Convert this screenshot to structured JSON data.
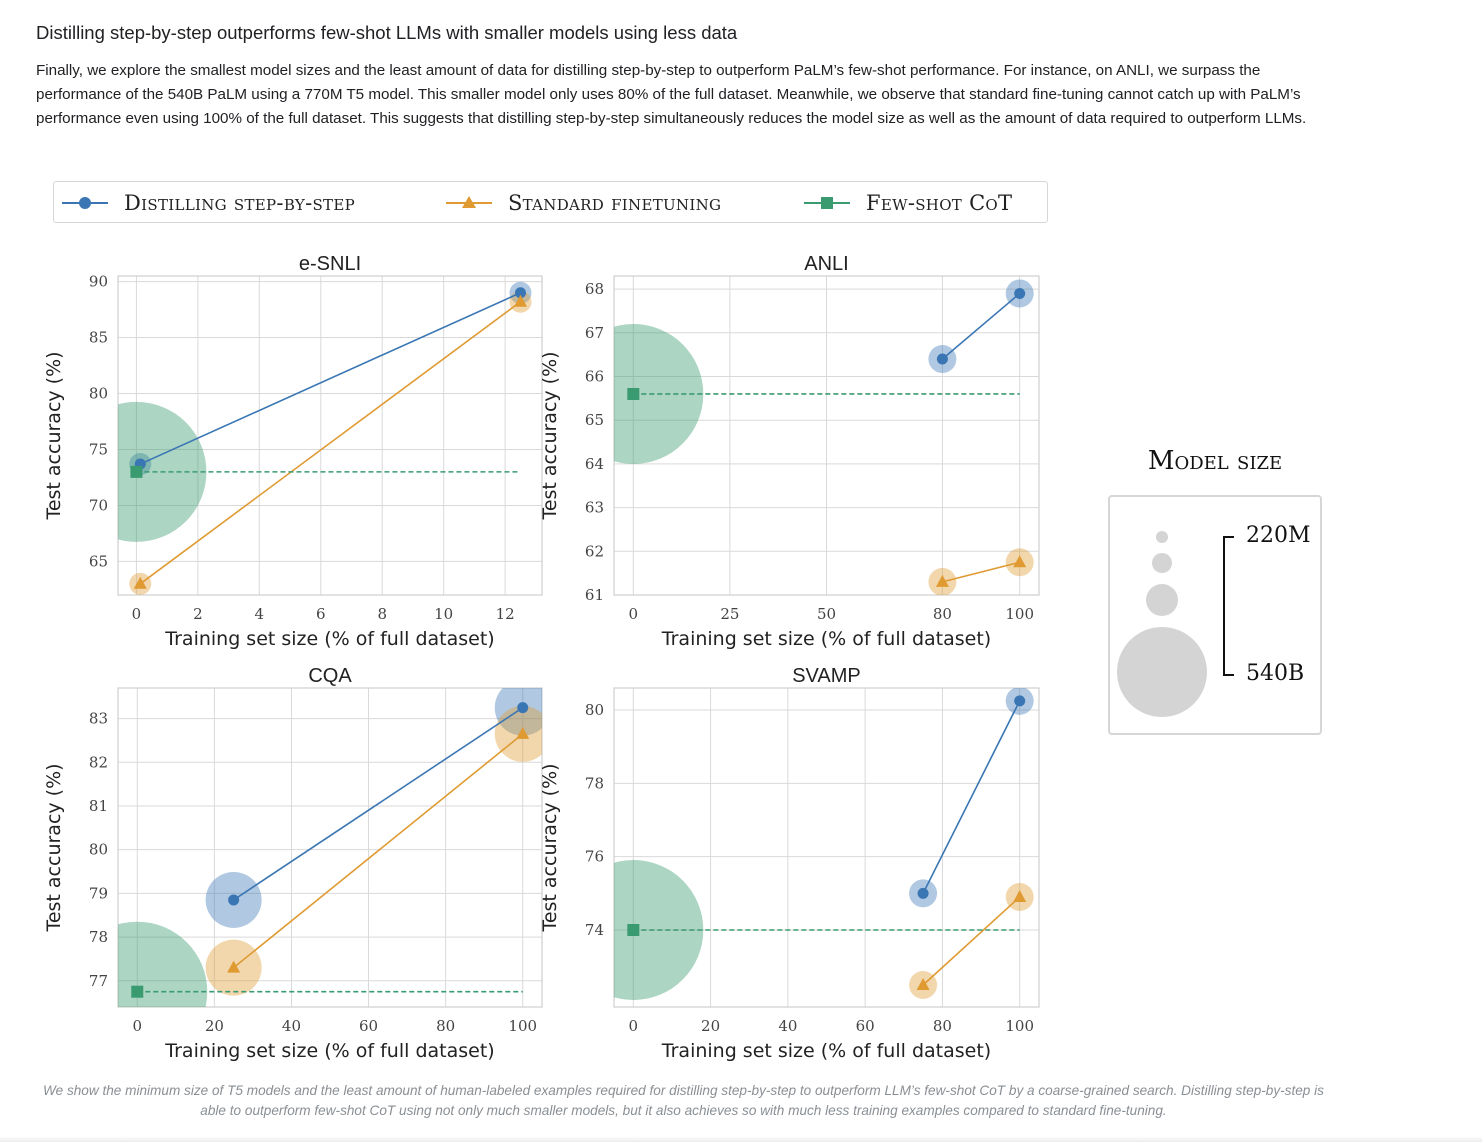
{
  "heading": "Distilling step-by-step outperforms few-shot LLMs with smaller models using less data",
  "paragraph": "Finally, we explore the smallest model sizes and the least amount of data for distilling step-by-step to outperform PaLM’s few-shot performance. For instance, on ANLI, we surpass the performance of the 540B PaLM using a 770M T5 model. This smaller model only uses 80% of the full dataset. Meanwhile, we observe that standard fine-tuning cannot catch up with PaLM’s performance even using 100% of the full dataset. This suggests that distilling step-by-step simultaneously reduces the model size as well as the amount of data required to outperform LLMs.",
  "legend": {
    "distill": "Distilling step-by-step",
    "standard": "Standard finetuning",
    "cot": "Few-shot CoT"
  },
  "colors": {
    "distill": "#3a76b4",
    "standard": "#df9a32",
    "cot": "#3a9a70",
    "bubble_gray": "#d4d4d4"
  },
  "model_size": {
    "title": "Model size",
    "small_label": "220M",
    "large_label": "540B"
  },
  "caption": "We show the minimum size of T5 models and the least amount of human-labeled examples required for distilling step-by-step to outperform LLM’s few-shot CoT by a coarse-grained search. Distilling step-by-step is able to outperform few-shot CoT using not only much smaller models, but it also achieves so with much less training examples compared to standard fine-tuning.",
  "chart_data": [
    {
      "type": "scatter",
      "title": "e-SNLI",
      "xlabel": "Training set size (% of full dataset)",
      "ylabel": "Test accuracy (%)",
      "xscale": "linear",
      "xlim": [
        -0.6,
        13.2
      ],
      "ylim": [
        62,
        90.5
      ],
      "xticks": [
        0,
        2,
        4,
        6,
        8,
        10,
        12
      ],
      "yticks": [
        65,
        70,
        75,
        80,
        85,
        90
      ],
      "grid": true,
      "series": [
        {
          "name": "Distilling step-by-step",
          "marker": "circle",
          "x": [
            0.125,
            12.5
          ],
          "y": [
            73.7,
            89.0
          ],
          "model_size": [
            "220M",
            "220M"
          ]
        },
        {
          "name": "Standard finetuning",
          "marker": "triangle",
          "x": [
            0.125,
            12.5
          ],
          "y": [
            63.0,
            88.2
          ],
          "model_size": [
            "220M",
            "220M"
          ]
        },
        {
          "name": "Few-shot CoT",
          "marker": "square",
          "x": [
            0.0,
            12.5
          ],
          "y": [
            73.0,
            73.0
          ],
          "model_size": [
            "540B"
          ]
        }
      ]
    },
    {
      "type": "scatter",
      "title": "ANLI",
      "xlabel": "Training set size (% of full dataset)",
      "ylabel": "Test accuracy (%)",
      "xscale": "nonlinear",
      "xlim": [
        -5,
        105
      ],
      "ylim": [
        61,
        68.3
      ],
      "xticks": [
        0,
        25,
        50,
        80,
        100
      ],
      "yticks": [
        61,
        62,
        63,
        64,
        65,
        66,
        67,
        68
      ],
      "grid": true,
      "series": [
        {
          "name": "Distilling step-by-step",
          "marker": "circle",
          "x": [
            80,
            100
          ],
          "y": [
            66.4,
            67.9
          ],
          "model_size": [
            "770M",
            "770M"
          ]
        },
        {
          "name": "Standard finetuning",
          "marker": "triangle",
          "x": [
            80,
            100
          ],
          "y": [
            61.3,
            61.75
          ],
          "model_size": [
            "770M",
            "770M"
          ]
        },
        {
          "name": "Few-shot CoT",
          "marker": "square",
          "x": [
            0,
            100
          ],
          "y": [
            65.6,
            65.6
          ],
          "model_size": [
            "540B"
          ]
        }
      ]
    },
    {
      "type": "scatter",
      "title": "CQA",
      "xlabel": "Training set size (% of full dataset)",
      "ylabel": "Test accuracy (%)",
      "xscale": "linear",
      "xlim": [
        -5,
        105
      ],
      "ylim": [
        76.4,
        83.7
      ],
      "xticks": [
        0,
        20,
        40,
        60,
        80,
        100
      ],
      "yticks": [
        77,
        78,
        79,
        80,
        81,
        82,
        83
      ],
      "grid": true,
      "series": [
        {
          "name": "Distilling step-by-step",
          "marker": "circle",
          "x": [
            25,
            100
          ],
          "y": [
            78.85,
            83.25
          ],
          "model_size": [
            "11B",
            "11B"
          ]
        },
        {
          "name": "Standard finetuning",
          "marker": "triangle",
          "x": [
            25,
            100
          ],
          "y": [
            77.3,
            82.65
          ],
          "model_size": [
            "11B",
            "11B"
          ]
        },
        {
          "name": "Few-shot CoT",
          "marker": "square",
          "x": [
            0,
            100
          ],
          "y": [
            76.75,
            76.75
          ],
          "model_size": [
            "540B"
          ]
        }
      ]
    },
    {
      "type": "scatter",
      "title": "SVAMP",
      "xlabel": "Training set size (% of full dataset)",
      "ylabel": "Test accuracy (%)",
      "xscale": "linear",
      "xlim": [
        -5,
        105
      ],
      "ylim": [
        71.9,
        80.6
      ],
      "xticks": [
        0,
        20,
        40,
        60,
        80,
        100
      ],
      "yticks": [
        74,
        76,
        78,
        80
      ],
      "grid": true,
      "series": [
        {
          "name": "Distilling step-by-step",
          "marker": "circle",
          "x": [
            75,
            100
          ],
          "y": [
            75.0,
            80.25
          ],
          "model_size": [
            "770M",
            "770M"
          ]
        },
        {
          "name": "Standard finetuning",
          "marker": "triangle",
          "x": [
            75,
            100
          ],
          "y": [
            72.5,
            74.9
          ],
          "model_size": [
            "770M",
            "770M"
          ]
        },
        {
          "name": "Few-shot CoT",
          "marker": "square",
          "x": [
            0,
            100
          ],
          "y": [
            74.0,
            74.0
          ],
          "model_size": [
            "540B"
          ]
        }
      ]
    }
  ]
}
